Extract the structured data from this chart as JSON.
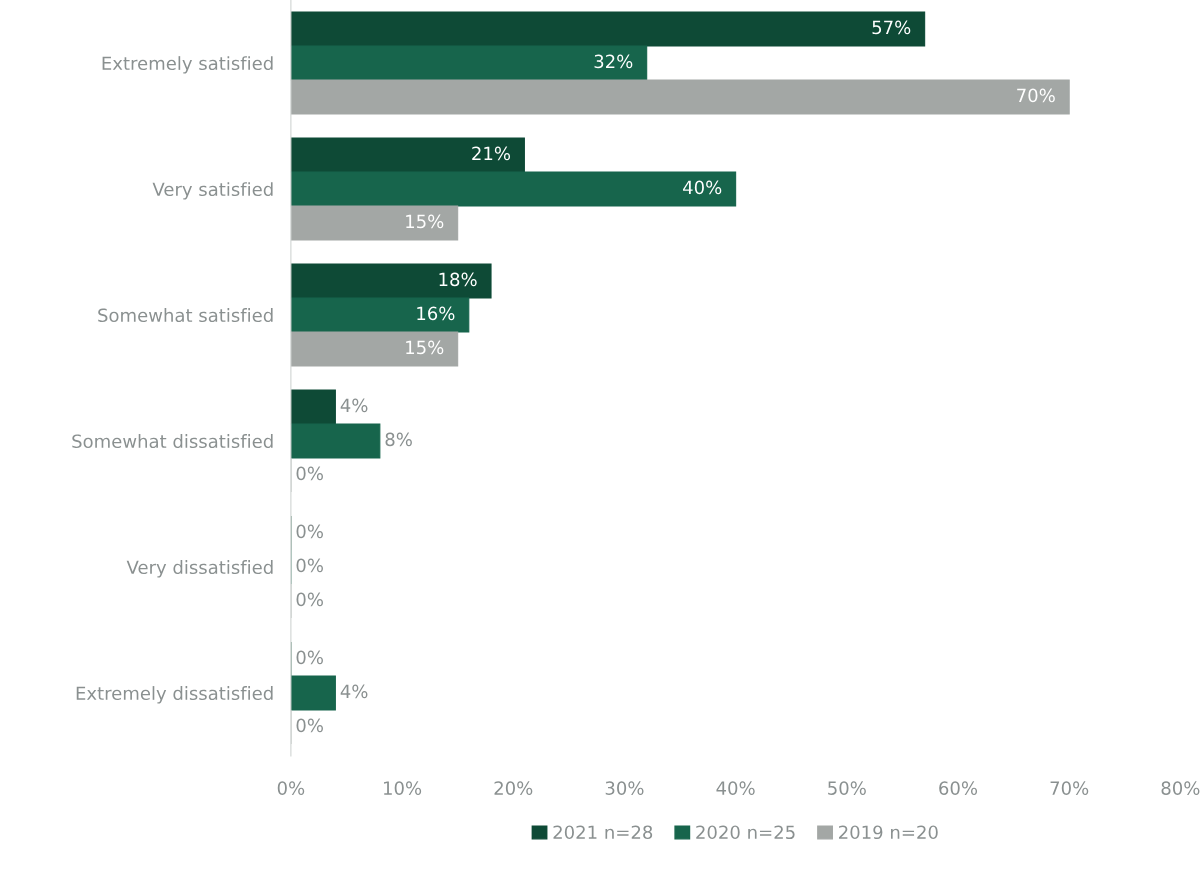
{
  "chart_data": {
    "type": "bar",
    "orientation": "horizontal",
    "categories": [
      "Extremely satisfied",
      "Very satisfied",
      "Somewhat satisfied",
      "Somewhat dissatisfied",
      "Very dissatisfied",
      "Extremely dissatisfied"
    ],
    "series": [
      {
        "name": "2021 n=28",
        "color": "#0e4a36",
        "values": [
          57,
          21,
          18,
          4,
          0,
          0
        ],
        "value_labels": [
          "57%",
          "21%",
          "18%",
          "4%",
          "0%",
          "0%"
        ]
      },
      {
        "name": "2020 n=25",
        "color": "#17654c",
        "values": [
          32,
          40,
          16,
          8,
          0,
          4
        ],
        "value_labels": [
          "32%",
          "40%",
          "16%",
          "8%",
          "0%",
          "4%"
        ]
      },
      {
        "name": "2019 n=20",
        "color": "#a3a7a5",
        "values": [
          70,
          15,
          15,
          0,
          0,
          0
        ],
        "value_labels": [
          "70%",
          "15%",
          "15%",
          "0%",
          "0%",
          "0%"
        ]
      }
    ],
    "xlim": [
      0,
      80
    ],
    "xticks": [
      {
        "value": 0,
        "label": "0%"
      },
      {
        "value": 10,
        "label": "10%"
      },
      {
        "value": 20,
        "label": "20%"
      },
      {
        "value": 30,
        "label": "30%"
      },
      {
        "value": 40,
        "label": "40%"
      },
      {
        "value": 50,
        "label": "50%"
      },
      {
        "value": 60,
        "label": "60%"
      },
      {
        "value": 70,
        "label": "70%"
      },
      {
        "value": 80,
        "label": "80%"
      }
    ],
    "grid": false,
    "legend": "bottom"
  }
}
